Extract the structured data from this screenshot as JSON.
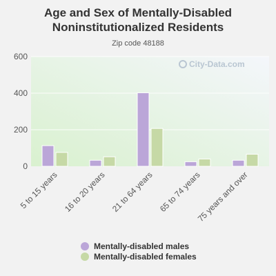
{
  "title_line1": "Age and Sex of Mentally-Disabled",
  "title_line2": "Noninstitutionalized Residents",
  "subtitle": "Zip code 48188",
  "watermark": "City-Data.com",
  "colors": {
    "males": "#bba6d8",
    "females": "#c6d9a6",
    "bar_stroke": "#ffffff",
    "plot_bg_top": "#f4f6fb",
    "plot_bg_bottom": "#d9f1cf"
  },
  "chart_data": {
    "type": "bar",
    "title": "Age and Sex of Mentally-Disabled Noninstitutionalized Residents",
    "subtitle": "Zip code 48188",
    "categories": [
      "5 to 15 years",
      "16 to 20 years",
      "21 to 64 years",
      "65 to 74 years",
      "75 years and over"
    ],
    "series": [
      {
        "name": "Mentally-disabled males",
        "values": [
          113,
          33,
          402,
          25,
          33
        ]
      },
      {
        "name": "Mentally-disabled females",
        "values": [
          76,
          52,
          207,
          40,
          66
        ]
      }
    ],
    "ylim": [
      0,
      600
    ],
    "yticks": [
      0,
      200,
      400,
      600
    ],
    "grid": true,
    "legend": "bottom-center"
  }
}
